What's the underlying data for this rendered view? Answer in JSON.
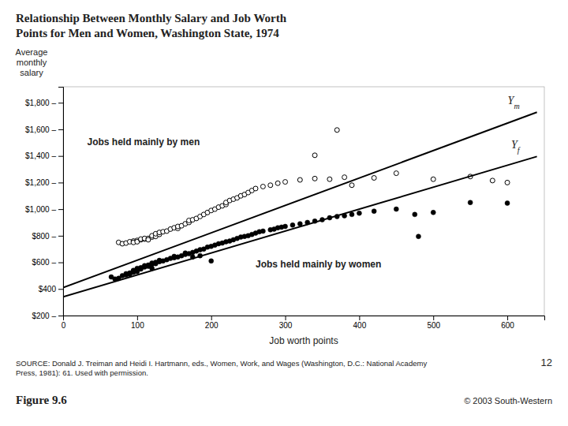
{
  "chart_data": {
    "type": "scatter",
    "title": "Relationship Between Monthly Salary and Job Worth\nPoints for Men and Women, Washington State, 1974",
    "x_label": "Job worth points",
    "y_label": "Average\nmonthly\nsalary",
    "xlim": [
      0,
      650
    ],
    "ylim": [
      200,
      1920
    ],
    "xticks": [
      0,
      100,
      200,
      300,
      400,
      500,
      600
    ],
    "yticks": [
      {
        "value": 200,
        "label": "$200 –"
      },
      {
        "value": 400,
        "label": "$400"
      },
      {
        "value": 600,
        "label": "$600 –"
      },
      {
        "value": 800,
        "label": "$800 –"
      },
      {
        "value": 1000,
        "label": "$1,000 –"
      },
      {
        "value": 1200,
        "label": "$1,200 –"
      },
      {
        "value": 1400,
        "label": "$1,400 –"
      },
      {
        "value": 1600,
        "label": "$1,600 –"
      },
      {
        "value": 1800,
        "label": "$1,800 –"
      }
    ],
    "grid": false,
    "series": [
      {
        "type": "scatter",
        "marker": "circle-open",
        "color": "#000000",
        "x": [
          75,
          80,
          85,
          90,
          95,
          95,
          100,
          100,
          105,
          105,
          110,
          110,
          115,
          115,
          120,
          120,
          125,
          125,
          130,
          130,
          135,
          140,
          145,
          150,
          155,
          155,
          160,
          165,
          170,
          170,
          175,
          180,
          185,
          190,
          195,
          200,
          205,
          210,
          215,
          220,
          220,
          225,
          230,
          235,
          240,
          245,
          250,
          255,
          260,
          270,
          280,
          290,
          300,
          320,
          340,
          360,
          380,
          390,
          420,
          450,
          500,
          550,
          580,
          600,
          370,
          340
        ],
        "values": [
          750,
          740,
          745,
          755,
          760,
          750,
          765,
          755,
          770,
          775,
          775,
          780,
          780,
          770,
          790,
          800,
          795,
          815,
          810,
          825,
          830,
          835,
          850,
          860,
          855,
          870,
          875,
          890,
          900,
          915,
          920,
          930,
          945,
          960,
          975,
          990,
          1000,
          1015,
          1025,
          1035,
          1050,
          1065,
          1075,
          1085,
          1100,
          1110,
          1125,
          1140,
          1155,
          1170,
          1180,
          1195,
          1205,
          1220,
          1230,
          1225,
          1240,
          1180,
          1235,
          1270,
          1225,
          1245,
          1215,
          1200,
          1595,
          1405
        ]
      },
      {
        "type": "scatter",
        "marker": "circle",
        "color": "#000000",
        "x": [
          65,
          70,
          75,
          80,
          85,
          85,
          90,
          90,
          95,
          95,
          95,
          100,
          100,
          100,
          105,
          105,
          110,
          110,
          115,
          115,
          120,
          120,
          125,
          125,
          130,
          130,
          135,
          140,
          145,
          150,
          150,
          155,
          160,
          165,
          165,
          170,
          175,
          180,
          185,
          190,
          195,
          200,
          205,
          210,
          215,
          220,
          225,
          230,
          235,
          240,
          245,
          250,
          255,
          260,
          265,
          270,
          280,
          285,
          290,
          295,
          300,
          310,
          320,
          330,
          340,
          350,
          360,
          370,
          380,
          390,
          400,
          420,
          450,
          475,
          500,
          480,
          550,
          600,
          175,
          185,
          120,
          200
        ],
        "values": [
          490,
          475,
          480,
          500,
          505,
          515,
          510,
          520,
          525,
          535,
          540,
          530,
          545,
          555,
          550,
          560,
          565,
          575,
          570,
          580,
          585,
          595,
          590,
          600,
          605,
          615,
          610,
          620,
          630,
          635,
          645,
          640,
          650,
          660,
          670,
          665,
          675,
          685,
          695,
          700,
          715,
          720,
          730,
          740,
          745,
          755,
          760,
          770,
          780,
          790,
          795,
          800,
          810,
          820,
          830,
          835,
          845,
          850,
          860,
          865,
          870,
          880,
          890,
          900,
          910,
          920,
          935,
          945,
          950,
          960,
          970,
          985,
          1000,
          960,
          975,
          795,
          1050,
          1045,
          640,
          650,
          555,
          610
        ]
      },
      {
        "type": "line",
        "line_style": "solid",
        "color": "#000000",
        "x": [
          0,
          640
        ],
        "values": [
          410,
          1728.4
        ]
      },
      {
        "type": "line",
        "line_style": "solid",
        "color": "#000000",
        "x": [
          0,
          640
        ],
        "values": [
          340,
          1396
        ]
      }
    ],
    "annotations": [
      "Ym",
      "Yf",
      "Jobs held mainly by men",
      "Jobs held mainly by women"
    ],
    "source": "SOURCE: Donald J. Treiman and Heidi I. Hartmann, eds., Women, Work, and Wages (Washington, D.C.: National Academy\nPress, 1981): 61. Used with permission.",
    "figure_label": "Figure 9.6",
    "copyright": "© 2003 South-Western",
    "page_number": "12"
  }
}
